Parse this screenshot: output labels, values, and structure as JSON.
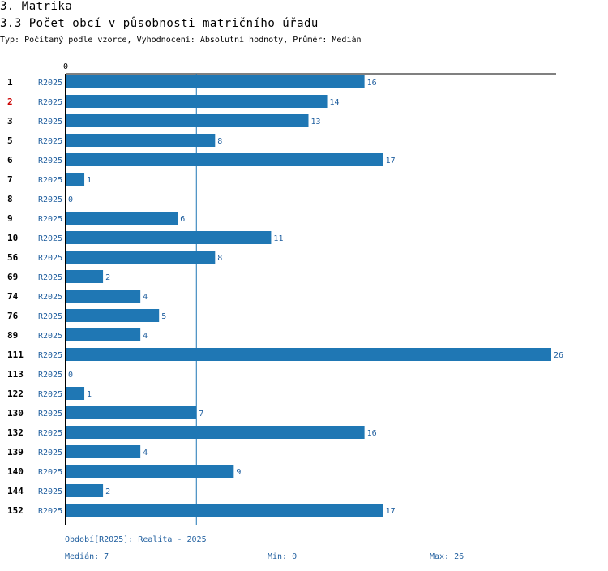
{
  "header": {
    "section_title": "3. Matrika",
    "chart_title": "3.3 Počet obcí v působnosti matričního úřadu",
    "subtitle": "Typ: Počítaný podle vzorce, Vyhodnocení: Absolutní hodnoty, Průměr: Medián"
  },
  "colors": {
    "bar": "#1f77b4",
    "label_text": "#1f5e9e",
    "highlight": "#cc0000",
    "axis": "#000000"
  },
  "chart_data": {
    "type": "bar",
    "orientation": "horizontal",
    "axis_zero_label": "0",
    "series_label": "R2025",
    "categories": [
      "1",
      "2",
      "3",
      "5",
      "6",
      "7",
      "8",
      "9",
      "10",
      "56",
      "69",
      "74",
      "76",
      "89",
      "111",
      "113",
      "122",
      "130",
      "132",
      "139",
      "140",
      "144",
      "152"
    ],
    "highlighted_category": "2",
    "values": [
      16,
      14,
      13,
      8,
      17,
      1,
      0,
      6,
      11,
      8,
      2,
      4,
      5,
      4,
      26,
      0,
      1,
      7,
      16,
      4,
      9,
      2,
      17
    ],
    "xlim": [
      0,
      26
    ],
    "median_line": 7
  },
  "footer": {
    "period": "Období[R2025]: Realita - 2025",
    "median": "Medián: 7",
    "min": "Min: 0",
    "max": "Max: 26"
  }
}
